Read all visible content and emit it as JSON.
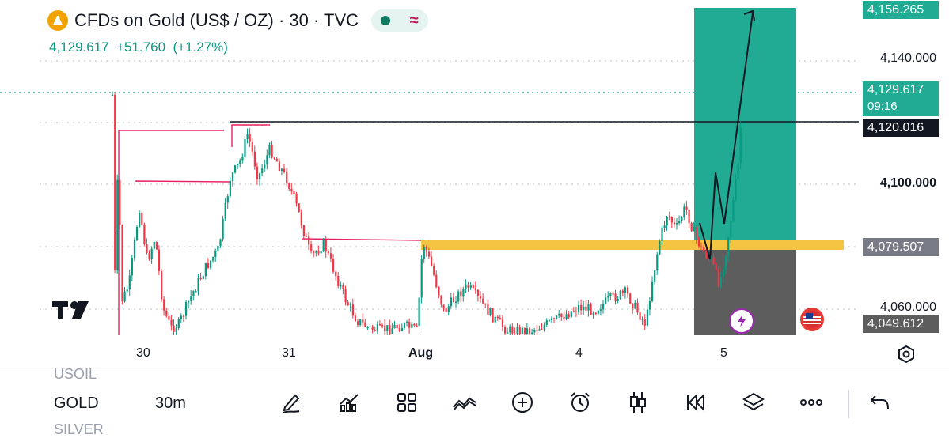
{
  "header": {
    "symbol_title": "CFDs on Gold (US$ / OZ) · 30 · TVC",
    "last_price": "4,129.617",
    "change": "+51.760",
    "change_pct": "(+1.27%)"
  },
  "price_axis": {
    "ticks": [
      "4,140.000",
      "4,100.000",
      "4,060.000"
    ],
    "labels": {
      "target": "4,156.265",
      "current": "4,129.617",
      "countdown": "09:16",
      "resistance": "4,120.016",
      "entry": "4,079.507",
      "stop": "4,049.612"
    }
  },
  "time_axis": {
    "ticks": [
      "30",
      "31",
      "Aug",
      "4",
      "5"
    ]
  },
  "toolbar": {
    "symbol_prev": "USOIL",
    "symbol": "GOLD",
    "symbol_next": "SILVER",
    "timeframe": "30m",
    "tools": [
      "pencil-icon",
      "chart-line-icon",
      "grid-icon",
      "indicators-icon",
      "plus-circle-icon",
      "alarm-icon",
      "candles-icon",
      "rewind-icon",
      "layers-icon",
      "more-icon",
      "undo-icon"
    ]
  },
  "colors": {
    "up": "#089981",
    "down": "#f23645",
    "profit_zone": "#22ab94",
    "loss_zone": "#5d5d5d",
    "support_band": "#f5c342",
    "level_line": "#e91e63"
  }
}
